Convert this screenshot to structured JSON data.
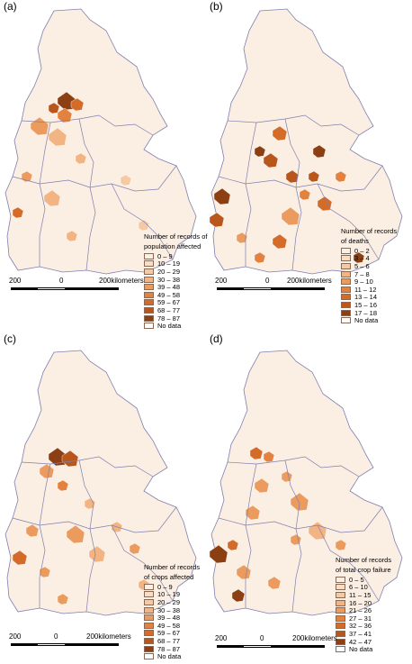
{
  "panels": [
    {
      "label": "(a)",
      "legend_title": [
        "Number of records of",
        "population affected"
      ],
      "classes": [
        "0 – 9",
        "10 – 19",
        "20 – 29",
        "30 – 38",
        "39 – 48",
        "49 – 58",
        "59 – 67",
        "68 – 77",
        "78 – 87",
        "No data"
      ],
      "colors": [
        "#fbeee2",
        "#f8dcc4",
        "#f5c9a4",
        "#f2b482",
        "#ec9b5e",
        "#e3823f",
        "#d46b28",
        "#b9561c",
        "#8c3f12",
        "#ffffff"
      ]
    },
    {
      "label": "(b)",
      "legend_title": [
        "Number of records",
        "of deaths"
      ],
      "classes": [
        "0 – 2",
        "3 – 4",
        "5 – 6",
        "7 – 8",
        "9 – 10",
        "11 – 12",
        "13 – 14",
        "15 – 16",
        "17 – 18",
        "No data"
      ],
      "colors": [
        "#fbeee2",
        "#f8dcc4",
        "#f5c9a4",
        "#f2b482",
        "#ec9b5e",
        "#e3823f",
        "#d46b28",
        "#b9561c",
        "#8c3f12",
        "#ffffff"
      ]
    },
    {
      "label": "(c)",
      "legend_title": [
        "Number of records",
        "of crops affected"
      ],
      "classes": [
        "0 – 9",
        "10 – 19",
        "20 – 29",
        "30 – 38",
        "39 – 48",
        "49 – 58",
        "59 – 67",
        "68 – 77",
        "78 – 87",
        "No data"
      ],
      "colors": [
        "#fbeee2",
        "#f8dcc4",
        "#f5c9a4",
        "#f2b482",
        "#ec9b5e",
        "#e3823f",
        "#d46b28",
        "#b9561c",
        "#8c3f12",
        "#ffffff"
      ]
    },
    {
      "label": "(d)",
      "legend_title": [
        "Number of records",
        "of total crop failure"
      ],
      "classes": [
        "0 – 5",
        "6 – 10",
        "11 – 15",
        "16 – 20",
        "21 – 26",
        "27 – 31",
        "32 – 36",
        "37 – 41",
        "42 – 47",
        "No data"
      ],
      "colors": [
        "#fbeee2",
        "#f8dcc4",
        "#f5c9a4",
        "#f2b482",
        "#ec9b5e",
        "#e3823f",
        "#d46b28",
        "#b9561c",
        "#8c3f12",
        "#ffffff"
      ]
    }
  ],
  "scale_bar": {
    "left_value": "200",
    "mid_value": "0",
    "right_value": "200kilometers"
  },
  "map_colors": {
    "land_base": "#fbeee2",
    "boundary": "#7f7fb0",
    "district_line": "#ffffff"
  }
}
